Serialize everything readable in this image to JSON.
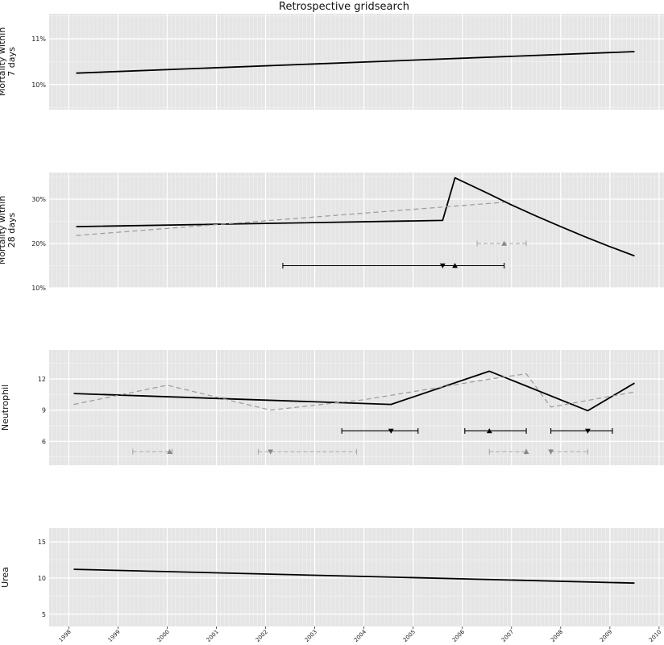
{
  "title": "Retrospective gridsearch",
  "colors": {
    "panel_bg": "#e5e5e5",
    "major_grid": "#ffffff",
    "minor_grid": "#f2f2f2",
    "trend": "#000000",
    "dashed": "#999999",
    "ci_solid": "#000000",
    "ci_dashed": "#aaaaaa"
  },
  "chart_data": [
    {
      "type": "line",
      "ylabel": [
        "Mortality within",
        "7 days"
      ],
      "ylim": [
        0.0945,
        0.1155
      ],
      "yticks": [
        0.1,
        0.11
      ],
      "ytick_labels": [
        "10%",
        "11%"
      ],
      "xlim": [
        1997.6,
        2010.1
      ],
      "grid": true,
      "series": [
        {
          "style": "solid",
          "x": [
            1998.15,
            2009.5
          ],
          "y": [
            0.1025,
            0.1072
          ]
        }
      ],
      "intervals": []
    },
    {
      "type": "line",
      "ylabel": [
        "Mortality within",
        "28 days"
      ],
      "ylim": [
        0.1,
        0.36
      ],
      "yticks": [
        0.1,
        0.2,
        0.3
      ],
      "ytick_labels": [
        "10%",
        "20%",
        "30%"
      ],
      "xlim": [
        1997.6,
        2010.1
      ],
      "grid": true,
      "series": [
        {
          "style": "solid",
          "x": [
            1998.15,
            2005.6,
            2005.85,
            2006.5,
            2007.0,
            2007.5,
            2008.0,
            2008.5,
            2009.0,
            2009.5
          ],
          "y": [
            0.238,
            0.252,
            0.348,
            0.314,
            0.287,
            0.262,
            0.238,
            0.215,
            0.193,
            0.172
          ]
        },
        {
          "style": "dashed",
          "x": [
            1998.15,
            2006.85
          ],
          "y": [
            0.218,
            0.293
          ]
        }
      ],
      "intervals": [
        {
          "style": "solid",
          "x0": 2002.35,
          "x1": 2006.85,
          "y": 0.15,
          "marks": [
            {
              "x": 2005.6,
              "shape": "down"
            },
            {
              "x": 2005.85,
              "shape": "up"
            }
          ]
        },
        {
          "style": "dashed",
          "x0": 2006.3,
          "x1": 2007.3,
          "y": 0.2,
          "marks": [
            {
              "x": 2006.85,
              "shape": "up"
            }
          ]
        }
      ]
    },
    {
      "type": "line",
      "ylabel": [
        "Neutrophil"
      ],
      "ylim": [
        3.7,
        14.8
      ],
      "yticks": [
        6,
        9,
        12
      ],
      "ytick_labels": [
        "6",
        "9",
        "12"
      ],
      "xlim": [
        1997.6,
        2010.1
      ],
      "grid": true,
      "series": [
        {
          "style": "solid",
          "x": [
            1998.1,
            2004.55,
            2006.55,
            2008.55,
            2009.5
          ],
          "y": [
            10.6,
            9.55,
            12.75,
            8.95,
            11.6
          ]
        },
        {
          "style": "dashed",
          "x": [
            1998.1,
            2000.0,
            2002.1,
            2004.0,
            2006.5,
            2007.3,
            2007.8,
            2009.5
          ],
          "y": [
            9.55,
            11.4,
            9.0,
            10.0,
            11.95,
            12.5,
            9.3,
            10.75
          ]
        }
      ],
      "intervals": [
        {
          "style": "solid",
          "x0": 2003.55,
          "x1": 2005.1,
          "y": 7.0,
          "marks": [
            {
              "x": 2004.55,
              "shape": "down"
            }
          ]
        },
        {
          "style": "solid",
          "x0": 2006.05,
          "x1": 2007.3,
          "y": 7.0,
          "marks": [
            {
              "x": 2006.55,
              "shape": "up"
            }
          ]
        },
        {
          "style": "solid",
          "x0": 2007.8,
          "x1": 2009.05,
          "y": 7.0,
          "marks": [
            {
              "x": 2008.55,
              "shape": "down"
            }
          ]
        },
        {
          "style": "dashed",
          "x0": 1999.3,
          "x1": 2000.1,
          "y": 5.0,
          "marks": [
            {
              "x": 2000.05,
              "shape": "up"
            }
          ]
        },
        {
          "style": "dashed",
          "x0": 2001.85,
          "x1": 2003.85,
          "y": 5.0,
          "marks": [
            {
              "x": 2002.1,
              "shape": "down"
            }
          ]
        },
        {
          "style": "dashed",
          "x0": 2006.55,
          "x1": 2007.3,
          "y": 5.0,
          "marks": [
            {
              "x": 2007.3,
              "shape": "up"
            }
          ]
        },
        {
          "style": "dashed",
          "x0": 2007.8,
          "x1": 2008.55,
          "y": 5.0,
          "marks": [
            {
              "x": 2007.8,
              "shape": "down"
            }
          ]
        }
      ]
    },
    {
      "type": "line",
      "ylabel": [
        "Urea"
      ],
      "ylim": [
        3.3,
        16.9
      ],
      "yticks": [
        5,
        10,
        15
      ],
      "ytick_labels": [
        "5",
        "10",
        "15"
      ],
      "xlim": [
        1997.6,
        2010.1
      ],
      "grid": true,
      "series": [
        {
          "style": "solid",
          "x": [
            1998.1,
            2009.5
          ],
          "y": [
            11.2,
            9.3
          ]
        }
      ],
      "intervals": []
    }
  ],
  "x_ticks": [
    1998,
    1999,
    2000,
    2001,
    2002,
    2003,
    2004,
    2005,
    2006,
    2007,
    2008,
    2009,
    2010
  ],
  "x_tick_labels": [
    "1998",
    "1999",
    "2000",
    "2001",
    "2002",
    "2003",
    "2004",
    "2005",
    "2006",
    "2007",
    "2008",
    "2009",
    "2010"
  ]
}
